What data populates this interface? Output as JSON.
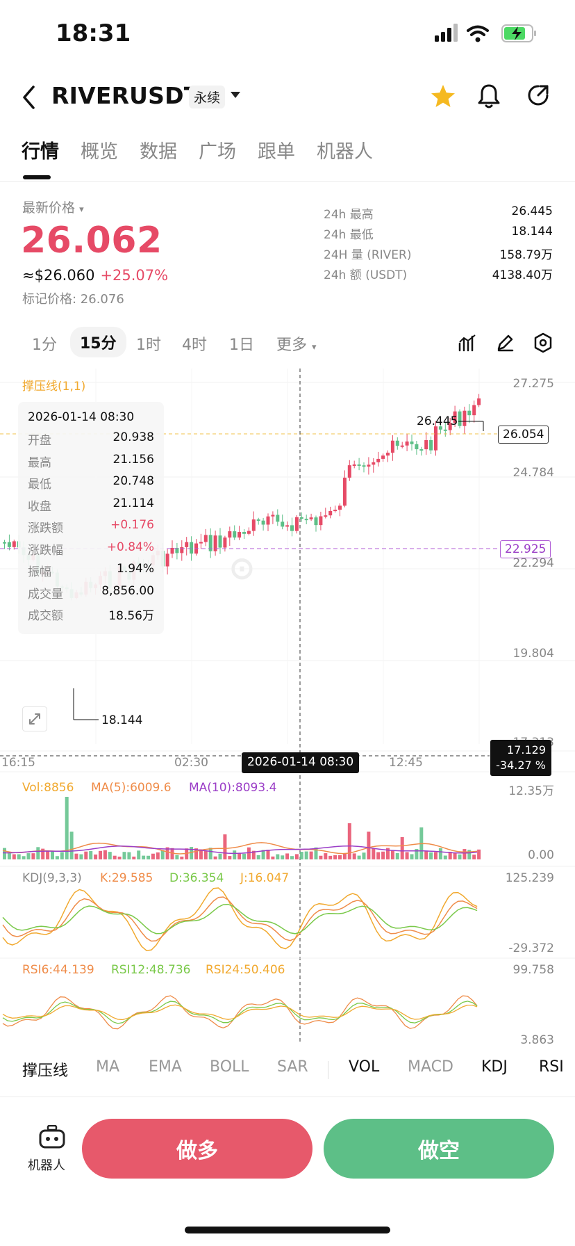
{
  "status": {
    "time": "18:31"
  },
  "header": {
    "symbol": "RIVERUSDT",
    "contract_type": "永续"
  },
  "tabs": [
    "行情",
    "概览",
    "数据",
    "广场",
    "跟单",
    "机器人"
  ],
  "ticker": {
    "latest_label": "最新价格",
    "last_price": "26.062",
    "usd_price": "≈$26.060",
    "change_pct": "+25.07%",
    "mark_price": "标记价格: 26.076",
    "stats": [
      {
        "label": "24h  最高",
        "value": "26.445"
      },
      {
        "label": "24h  最低",
        "value": "18.144"
      },
      {
        "label": "24H  量 (RIVER)",
        "value": "158.79万"
      },
      {
        "label": "24h  额 (USDT)",
        "value": "4138.40万"
      }
    ]
  },
  "intervals": [
    "1分",
    "15分",
    "1时",
    "4时",
    "1日",
    "更多"
  ],
  "chart": {
    "indicator_title": "撑压线(1,1)",
    "y_labels": [
      "27.275",
      "24.784",
      "22.294",
      "19.804",
      "17.313"
    ],
    "max_label": "26.445",
    "min_label": "18.144",
    "current_tag": "26.054",
    "resistance_tag": "22.925",
    "crosshair_price": "17.129",
    "crosshair_pct": "-34.27 %",
    "x_labels": [
      "16:15",
      "02:30",
      "12:45"
    ],
    "crosshair_time": "2026-01-14 08:30",
    "tooltip": {
      "date": "2026-01-14 08:30",
      "rows": [
        {
          "k": "开盘",
          "v": "20.938"
        },
        {
          "k": "最高",
          "v": "21.156"
        },
        {
          "k": "最低",
          "v": "20.748"
        },
        {
          "k": "收盘",
          "v": "21.114"
        },
        {
          "k": "涨跌额",
          "v": "+0.176"
        },
        {
          "k": "涨跌幅",
          "v": "+0.84%"
        },
        {
          "k": "振幅",
          "v": "1.94%"
        },
        {
          "k": "成交量",
          "v": "8,856.00"
        },
        {
          "k": "成交额",
          "v": "18.56万"
        }
      ]
    },
    "vol": {
      "vol": "Vol:8856",
      "ma5": "MA(5):6009.6",
      "ma10": "MA(10):8093.4",
      "max": "12.35万",
      "min": "0.00"
    },
    "kdj": {
      "title": "KDJ(9,3,3)",
      "k": "K:29.585",
      "d": "D:36.354",
      "j": "J:16.047",
      "max": "125.239",
      "min": "-29.372"
    },
    "rsi": {
      "r6": "RSI6:44.139",
      "r12": "RSI12:48.736",
      "r24": "RSI24:50.406",
      "max": "99.758",
      "min": "3.863"
    }
  },
  "indicators": [
    "撑压线",
    "MA",
    "EMA",
    "BOLL",
    "SAR",
    "VOL",
    "MACD",
    "KDJ",
    "RSI"
  ],
  "bottom": {
    "robot": "机器人",
    "long": "做多",
    "short": "做空"
  },
  "colors": {
    "up": "#e64a66",
    "down": "#5dbf87",
    "accent": "#f5b921"
  }
}
